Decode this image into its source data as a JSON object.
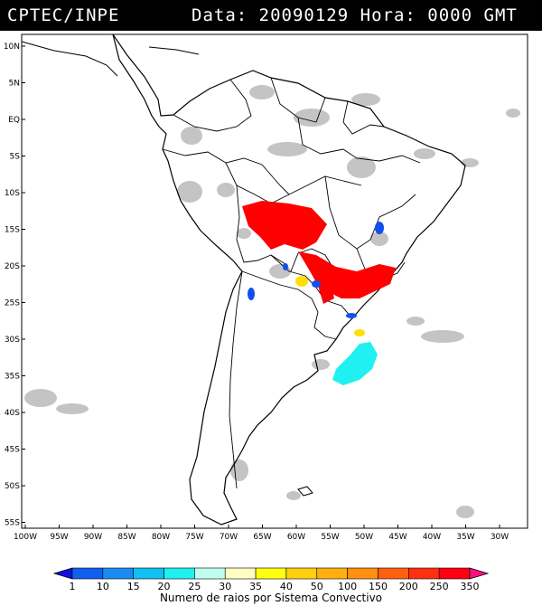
{
  "header": {
    "org": "CPTEC/INPE",
    "data_label": "Data:",
    "date": "20090129",
    "hora_label": "Hora:",
    "time": "0000",
    "zone": "GMT"
  },
  "axes": {
    "lat_labels": [
      "10N",
      "5N",
      "EQ",
      "5S",
      "10S",
      "15S",
      "20S",
      "25S",
      "30S",
      "35S",
      "40S",
      "45S",
      "50S",
      "55S"
    ],
    "lon_labels": [
      "100W",
      "95W",
      "90W",
      "85W",
      "80W",
      "75W",
      "70W",
      "65W",
      "60W",
      "55W",
      "50W",
      "45W",
      "40W",
      "35W",
      "30W"
    ]
  },
  "colorbar": {
    "title": "Numero de raios por Sistema Convectivo",
    "labels": [
      "1",
      "10",
      "15",
      "20",
      "25",
      "30",
      "35",
      "40",
      "50",
      "100",
      "150",
      "200",
      "250",
      "350"
    ],
    "colors": [
      "#1010e0",
      "#1060f0",
      "#1a8cf0",
      "#10c0f0",
      "#20f0f0",
      "#c0fff0",
      "#ffffc0",
      "#ffff10",
      "#ffd010",
      "#ffb010",
      "#ff9010",
      "#ff6010",
      "#ff3010",
      "#ff0010",
      "#ff1080"
    ]
  },
  "colors": {
    "cloud": "#c4c4c4",
    "land_border": "#000000",
    "strikes_red": "#ff0000",
    "strikes_cyan": "#20f0f0",
    "strikes_yellow": "#ffe000",
    "strikes_blue": "#1050f0"
  },
  "icons": {
    "legend_arrows": "triangle-arrow"
  }
}
